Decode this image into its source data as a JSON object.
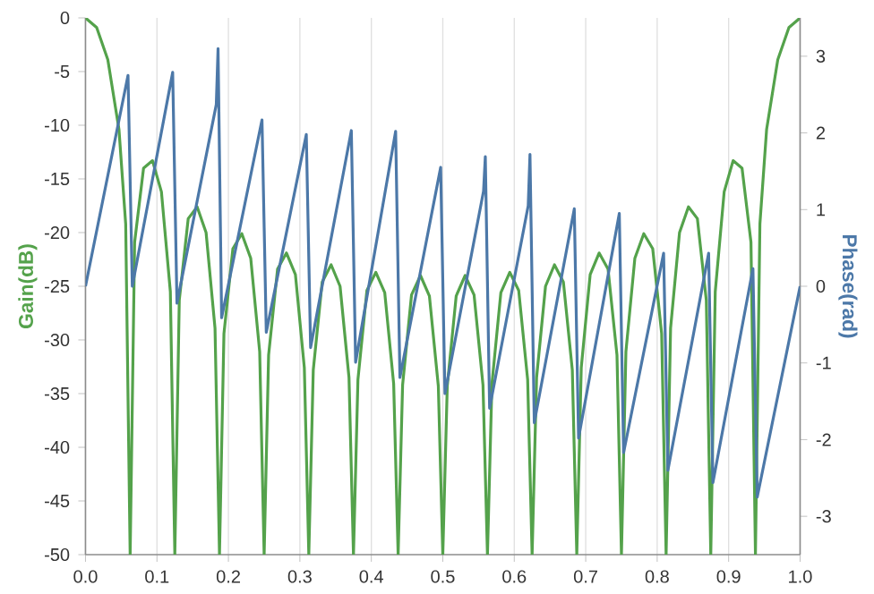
{
  "chart_data": {
    "type": "line",
    "ylabel": "Gain(dB)",
    "y2label": "Phase(rad)",
    "grid": "x",
    "xlim": [
      0,
      1
    ],
    "xticks": [
      {
        "value": 0,
        "label": "0.0"
      },
      0.1,
      0.2,
      0.3,
      0.4,
      0.5,
      0.6,
      0.7,
      0.8,
      0.9,
      {
        "value": 1,
        "label": "1.0"
      }
    ],
    "ylim": [
      -50,
      0
    ],
    "yticks": [
      0,
      -5,
      -10,
      -15,
      -20,
      -25,
      -30,
      -35,
      -40,
      -45,
      -50
    ],
    "y2lim": [
      -3.5,
      3.5
    ],
    "y2ticks": [
      -3,
      -2,
      -1,
      0,
      1,
      2,
      3
    ],
    "series": [
      {
        "color": "#54a24b",
        "axis": "y",
        "x": [
          0,
          0.015625,
          0.03125,
          0.046875,
          0.05625,
          0.0625,
          0.06875,
          0.08125,
          0.09375,
          0.10625,
          0.11875,
          0.125,
          0.13125,
          0.14375,
          0.15625,
          0.16875,
          0.18125,
          0.1875,
          0.19375,
          0.20625,
          0.21875,
          0.23125,
          0.24375,
          0.25,
          0.25625,
          0.26875,
          0.28125,
          0.29375,
          0.30625,
          0.3125,
          0.31875,
          0.33125,
          0.34375,
          0.35625,
          0.36875,
          0.375,
          0.38125,
          0.39375,
          0.40625,
          0.41875,
          0.43125,
          0.4375,
          0.44375,
          0.45625,
          0.46875,
          0.48125,
          0.49375,
          0.5,
          0.50625,
          0.51875,
          0.53125,
          0.54375,
          0.55625,
          0.5625,
          0.56875,
          0.58125,
          0.59375,
          0.60625,
          0.61875,
          0.625,
          0.63125,
          0.64375,
          0.65625,
          0.66875,
          0.68125,
          0.6875,
          0.69375,
          0.70625,
          0.71875,
          0.73125,
          0.74375,
          0.75,
          0.75625,
          0.76875,
          0.78125,
          0.79375,
          0.80625,
          0.8125,
          0.81875,
          0.83125,
          0.84375,
          0.85625,
          0.86875,
          0.875,
          0.88125,
          0.89375,
          0.90625,
          0.91875,
          0.93125,
          0.9375,
          0.94375,
          0.953125,
          0.96875,
          0.984375,
          1.0
        ],
        "values": [
          0,
          -0.9,
          -3.9,
          -10.4,
          -19.2,
          -50,
          -20.9,
          -14.0,
          -13.3,
          -16.2,
          -25.5,
          -50,
          -26.3,
          -18.7,
          -17.6,
          -20.0,
          -28.9,
          -50,
          -29.4,
          -21.5,
          -20.1,
          -22.4,
          -31.1,
          -50,
          -31.4,
          -23.4,
          -21.9,
          -23.9,
          -32.6,
          -50,
          -32.8,
          -24.6,
          -23.0,
          -25.0,
          -33.5,
          -50,
          -33.7,
          -25.4,
          -23.7,
          -25.6,
          -34.1,
          -50,
          -34.2,
          -25.8,
          -24.0,
          -25.9,
          -34.3,
          -50,
          -34.3,
          -25.9,
          -24.0,
          -25.8,
          -34.2,
          -50,
          -34.1,
          -25.6,
          -23.7,
          -25.4,
          -33.7,
          -50,
          -33.5,
          -25.0,
          -23.0,
          -24.6,
          -32.8,
          -50,
          -32.6,
          -23.9,
          -21.9,
          -23.4,
          -31.4,
          -50,
          -31.1,
          -22.4,
          -20.1,
          -21.5,
          -29.4,
          -50,
          -28.9,
          -20.0,
          -17.6,
          -18.7,
          -26.3,
          -50,
          -25.5,
          -16.2,
          -13.3,
          -14.0,
          -20.9,
          -50,
          -19.2,
          -10.4,
          -3.9,
          -0.9,
          0
        ]
      },
      {
        "color": "#4c78a8",
        "axis": "y2",
        "x": [
          0,
          0.0595,
          0.0655,
          0.122,
          0.128,
          0.183,
          0.1855,
          0.1905,
          0.247,
          0.253,
          0.309,
          0.315,
          0.372,
          0.378,
          0.434,
          0.44,
          0.497,
          0.503,
          0.557,
          0.5595,
          0.5655,
          0.6195,
          0.622,
          0.628,
          0.684,
          0.69,
          0.747,
          0.753,
          0.809,
          0.815,
          0.872,
          0.878,
          0.934,
          0.94,
          1.0
        ],
        "values": [
          0,
          2.75,
          0.0,
          2.79,
          -0.22,
          2.37,
          3.1,
          -0.41,
          2.17,
          -0.6,
          1.98,
          -0.8,
          2.03,
          -0.99,
          2.02,
          -1.19,
          1.55,
          -1.4,
          1.24,
          1.69,
          -1.59,
          1.05,
          1.72,
          -1.78,
          1.01,
          -1.98,
          0.95,
          -2.17,
          0.43,
          -2.4,
          0.43,
          -2.56,
          0.23,
          -2.75,
          0
        ]
      }
    ]
  }
}
